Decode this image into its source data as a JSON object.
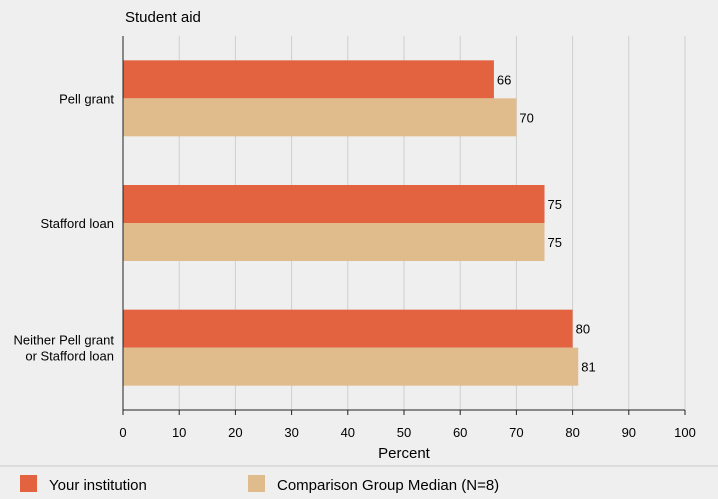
{
  "chart_data": {
    "type": "bar",
    "orientation": "horizontal",
    "title": "Student aid",
    "xlabel": "Percent",
    "ylabel": "",
    "xlim": [
      0,
      100
    ],
    "xticks": [
      0,
      10,
      20,
      30,
      40,
      50,
      60,
      70,
      80,
      90,
      100
    ],
    "grid": true,
    "legend_position": "bottom",
    "categories": [
      [
        "Pell grant"
      ],
      [
        "Stafford loan"
      ],
      [
        "Neither Pell grant",
        "or Stafford loan"
      ]
    ],
    "series": [
      {
        "name": "Your institution",
        "color": "#e36240",
        "values": [
          66,
          75,
          80
        ]
      },
      {
        "name": "Comparison Group Median (N=8)",
        "color": "#e0bb8b",
        "values": [
          70,
          75,
          81
        ]
      }
    ]
  }
}
